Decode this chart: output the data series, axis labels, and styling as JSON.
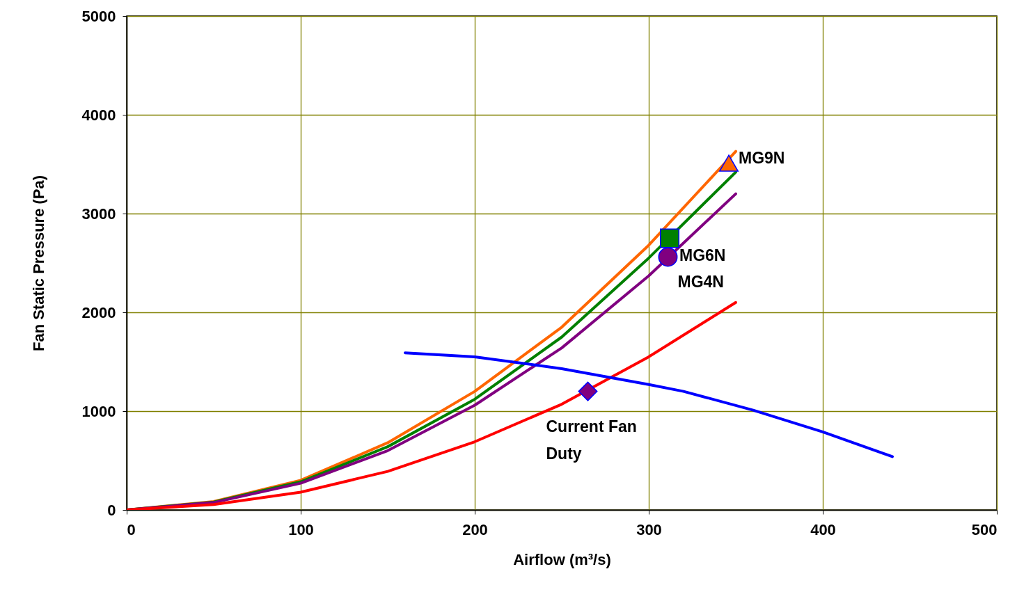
{
  "chart_data": {
    "type": "line",
    "xlabel": "Airflow   (m³/s)",
    "ylabel": "Fan Static Pressure   (Pa)",
    "xlim": [
      0,
      500
    ],
    "xticks": [
      0,
      100,
      200,
      300,
      400,
      500
    ],
    "ylim": [
      0,
      5000
    ],
    "yticks": [
      0,
      1000,
      2000,
      3000,
      4000,
      5000
    ],
    "grid": true,
    "line_style": "solid",
    "x": [
      0,
      50,
      100,
      150,
      200,
      250,
      300,
      350
    ],
    "series": [
      {
        "color": "#ff6600",
        "values": [
          0,
          85,
          300,
          680,
          1200,
          1850,
          2680,
          3630
        ]
      },
      {
        "color": "#008000",
        "values": [
          0,
          80,
          285,
          640,
          1120,
          1750,
          2550,
          3420
        ]
      },
      {
        "color": "#800080",
        "values": [
          0,
          75,
          270,
          600,
          1060,
          1640,
          2370,
          3200
        ]
      },
      {
        "color": "#ff0000",
        "values": [
          0,
          55,
          180,
          390,
          690,
          1070,
          1550,
          2100
        ]
      },
      {
        "color": "#0000ff",
        "x": [
          160,
          200,
          250,
          300,
          320,
          360,
          400,
          440
        ],
        "values": [
          1590,
          1550,
          1430,
          1270,
          1200,
          1010,
          790,
          540
        ]
      },
      {
        "type": "scatter",
        "marker": "triangle",
        "color": "#ff6600",
        "x": [
          346
        ],
        "values": [
          3510
        ]
      },
      {
        "type": "scatter",
        "marker": "square",
        "color": "#008000",
        "x": [
          312
        ],
        "values": [
          2750
        ]
      },
      {
        "type": "scatter",
        "marker": "circle",
        "color": "#800080",
        "x": [
          311
        ],
        "values": [
          2560
        ]
      },
      {
        "type": "scatter",
        "marker": "diamond",
        "color": "#800080",
        "x": [
          265
        ],
        "values": [
          1200
        ]
      }
    ],
    "annotations": [
      {
        "text": "MG9N",
        "x": 346,
        "y": 3510
      },
      {
        "text": "MG6N",
        "x": 312,
        "y": 2750
      },
      {
        "text": "MG4N",
        "x": 311,
        "y": 2560
      },
      {
        "text": "Current Fan Duty",
        "x": 265,
        "y": 1200
      }
    ]
  }
}
